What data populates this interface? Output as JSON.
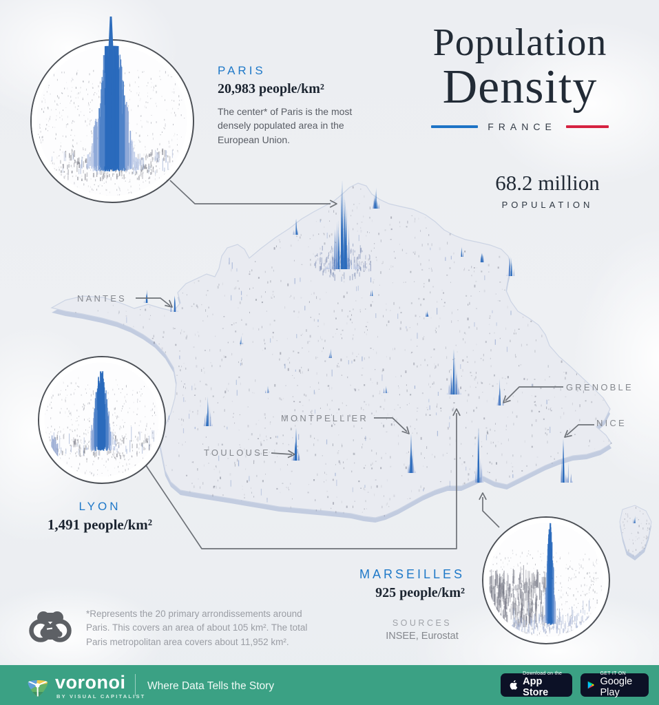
{
  "title": {
    "line1": "Population",
    "line2": "Density",
    "country": "FRANCE"
  },
  "population": {
    "value": "68.2 million",
    "label": "POPULATION"
  },
  "callouts": {
    "paris": {
      "name": "PARIS",
      "density": "20,983 people/km²",
      "description": "The center* of Paris is the most densely populated area in the European Union."
    },
    "lyon": {
      "name": "LYON",
      "density": "1,491 people/km²"
    },
    "marseilles": {
      "name": "MARSEILLES",
      "density": "925 people/km²"
    }
  },
  "map": {
    "labels": [
      {
        "name": "NANTES"
      },
      {
        "name": "MONTPELLIER"
      },
      {
        "name": "TOULOUSE"
      },
      {
        "name": "GRENOBLE"
      },
      {
        "name": "NICE"
      }
    ]
  },
  "footnote": {
    "text": "*Represents the 20 primary arrondissements around Paris. This covers an area of about 105 km². The total Paris metropolitan area covers about 11,952 km²."
  },
  "sources": {
    "label": "SOURCES",
    "value": "INSEE, Eurostat"
  },
  "footer": {
    "brand": "voronoi",
    "byline": "BY VISUAL CAPITALIST",
    "tagline": "Where Data Tells the Story",
    "appstore": {
      "top": "Download on the",
      "bottom": "App Store"
    },
    "googleplay": {
      "top": "GET IT ON",
      "bottom": "Google Play"
    }
  },
  "colors": {
    "accent_blue": "#1e78c8",
    "accent_red": "#d62241",
    "footer_teal": "#3ba184",
    "spike_blue": "#2c6cbd"
  },
  "chart_data": {
    "type": "heatmap",
    "note": "3D population-density spike map of France",
    "region": "France",
    "total_population": "68.2 million",
    "points": [
      {
        "city": "Paris",
        "density_people_per_km2": 20983
      },
      {
        "city": "Lyon",
        "density_people_per_km2": 1491
      },
      {
        "city": "Marseilles",
        "density_people_per_km2": 925
      }
    ],
    "labeled_cities_without_values": [
      "Nantes",
      "Montpellier",
      "Toulouse",
      "Grenoble",
      "Nice"
    ]
  }
}
